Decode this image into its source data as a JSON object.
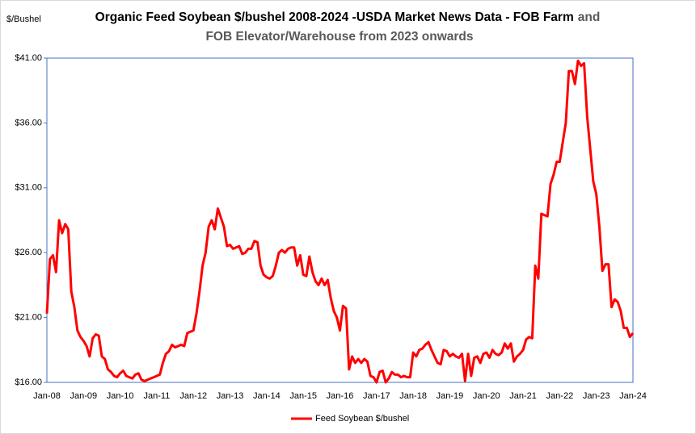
{
  "chart_data": {
    "type": "line",
    "title": [
      "Organic Feed Soybean $/bushel 2008-2024 -USDA Market News Data - FOB Farm",
      "and",
      "FOB Elevator/Warehouse from 2023 onwards"
    ],
    "title_colors": [
      "#000000",
      "#595959",
      "#595959"
    ],
    "y_label": "$/Bushel",
    "ylim": [
      16,
      41
    ],
    "yticks": [
      {
        "value": 16,
        "label": "$16.00"
      },
      {
        "value": 21,
        "label": "$21.00"
      },
      {
        "value": 26,
        "label": "$26.00"
      },
      {
        "value": 31,
        "label": "$31.00"
      },
      {
        "value": 36,
        "label": "$36.00"
      },
      {
        "value": 41,
        "label": "$41.00"
      }
    ],
    "grid": false,
    "legend": "bottom",
    "categories": [
      "Jan-08",
      null,
      null,
      null,
      null,
      null,
      null,
      null,
      null,
      null,
      null,
      null,
      "Jan-09",
      null,
      null,
      null,
      null,
      null,
      null,
      null,
      null,
      null,
      null,
      null,
      "Jan-10",
      null,
      null,
      null,
      null,
      null,
      null,
      null,
      null,
      null,
      null,
      null,
      "Jan-11",
      null,
      null,
      null,
      null,
      null,
      null,
      null,
      null,
      null,
      null,
      null,
      "Jan-12",
      null,
      null,
      null,
      null,
      null,
      null,
      null,
      null,
      null,
      null,
      null,
      "Jan-13",
      null,
      null,
      null,
      null,
      null,
      null,
      null,
      null,
      null,
      null,
      null,
      "Jan-14",
      null,
      null,
      null,
      null,
      null,
      null,
      null,
      null,
      null,
      null,
      null,
      "Jan-15",
      null,
      null,
      null,
      null,
      null,
      null,
      null,
      null,
      null,
      null,
      null,
      "Jan-16",
      null,
      null,
      null,
      null,
      null,
      null,
      null,
      null,
      null,
      null,
      null,
      "Jan-17",
      null,
      null,
      null,
      null,
      null,
      null,
      null,
      null,
      null,
      null,
      null,
      "Jan-18",
      null,
      null,
      null,
      null,
      null,
      null,
      null,
      null,
      null,
      null,
      null,
      "Jan-19",
      null,
      null,
      null,
      null,
      null,
      null,
      null,
      null,
      null,
      null,
      null,
      "Jan-20",
      null,
      null,
      null,
      null,
      null,
      null,
      null,
      null,
      null,
      null,
      null,
      "Jan-21",
      null,
      null,
      null,
      null,
      null,
      null,
      null,
      null,
      null,
      null,
      null,
      "Jan-22",
      null,
      null,
      null,
      null,
      null,
      null,
      null,
      null,
      null,
      null,
      null,
      "Jan-23",
      null,
      null,
      null,
      null,
      null,
      null,
      null,
      null,
      null,
      null,
      null,
      "Jan-24"
    ],
    "series": [
      {
        "name": "Feed Soybean $/bushel",
        "color": "#ff0000",
        "values": [
          21.3,
          25.5,
          25.8,
          24.5,
          28.5,
          27.5,
          28.2,
          27.8,
          23.0,
          21.8,
          20.0,
          19.5,
          19.2,
          18.8,
          18.0,
          19.4,
          19.7,
          19.6,
          18.0,
          17.8,
          17.0,
          16.8,
          16.5,
          16.4,
          16.7,
          16.9,
          16.5,
          16.4,
          16.3,
          16.6,
          16.7,
          16.2,
          16.1,
          16.2,
          16.3,
          16.4,
          16.5,
          16.6,
          17.5,
          18.2,
          18.4,
          18.9,
          18.7,
          18.8,
          18.9,
          18.8,
          19.8,
          19.9,
          20.0,
          21.3,
          23.0,
          25.0,
          26.0,
          28.0,
          28.5,
          27.8,
          29.4,
          28.7,
          28.0,
          26.5,
          26.6,
          26.3,
          26.4,
          26.5,
          25.9,
          26.0,
          26.3,
          26.3,
          26.9,
          26.8,
          25.0,
          24.3,
          24.1,
          24.0,
          24.2,
          25.0,
          26.0,
          26.2,
          26.0,
          26.3,
          26.4,
          26.4,
          25.0,
          25.8,
          24.3,
          24.2,
          25.7,
          24.5,
          23.8,
          23.5,
          24.0,
          23.5,
          23.9,
          22.5,
          21.5,
          21.0,
          20.0,
          21.9,
          21.7,
          17.0,
          18.0,
          17.5,
          17.8,
          17.5,
          17.8,
          17.6,
          16.5,
          16.4,
          16.0,
          16.8,
          16.9,
          16.0,
          16.3,
          16.8,
          16.6,
          16.6,
          16.4,
          16.5,
          16.4,
          16.4,
          18.3,
          18.0,
          18.5,
          18.6,
          18.9,
          19.1,
          18.5,
          18.0,
          17.5,
          17.4,
          18.5,
          18.4,
          18.0,
          18.2,
          18.0,
          17.9,
          18.2,
          16.1,
          18.2,
          16.5,
          17.9,
          18.0,
          17.5,
          18.2,
          18.3,
          17.9,
          18.5,
          18.2,
          18.1,
          18.3,
          19.0,
          18.6,
          19.0,
          17.6,
          18.0,
          18.2,
          18.5,
          19.3,
          19.5,
          19.4,
          25.0,
          24.0,
          29.0,
          28.9,
          28.8,
          31.3,
          32.0,
          33.0,
          33.0,
          34.5,
          36.0,
          40.0,
          40.0,
          39.0,
          40.8,
          40.4,
          40.6,
          36.5,
          34.0,
          31.5,
          30.5,
          28.0,
          24.6,
          25.1,
          25.1,
          21.8,
          22.4,
          22.2,
          21.5,
          20.2,
          20.2,
          19.5,
          19.8
        ]
      }
    ]
  }
}
